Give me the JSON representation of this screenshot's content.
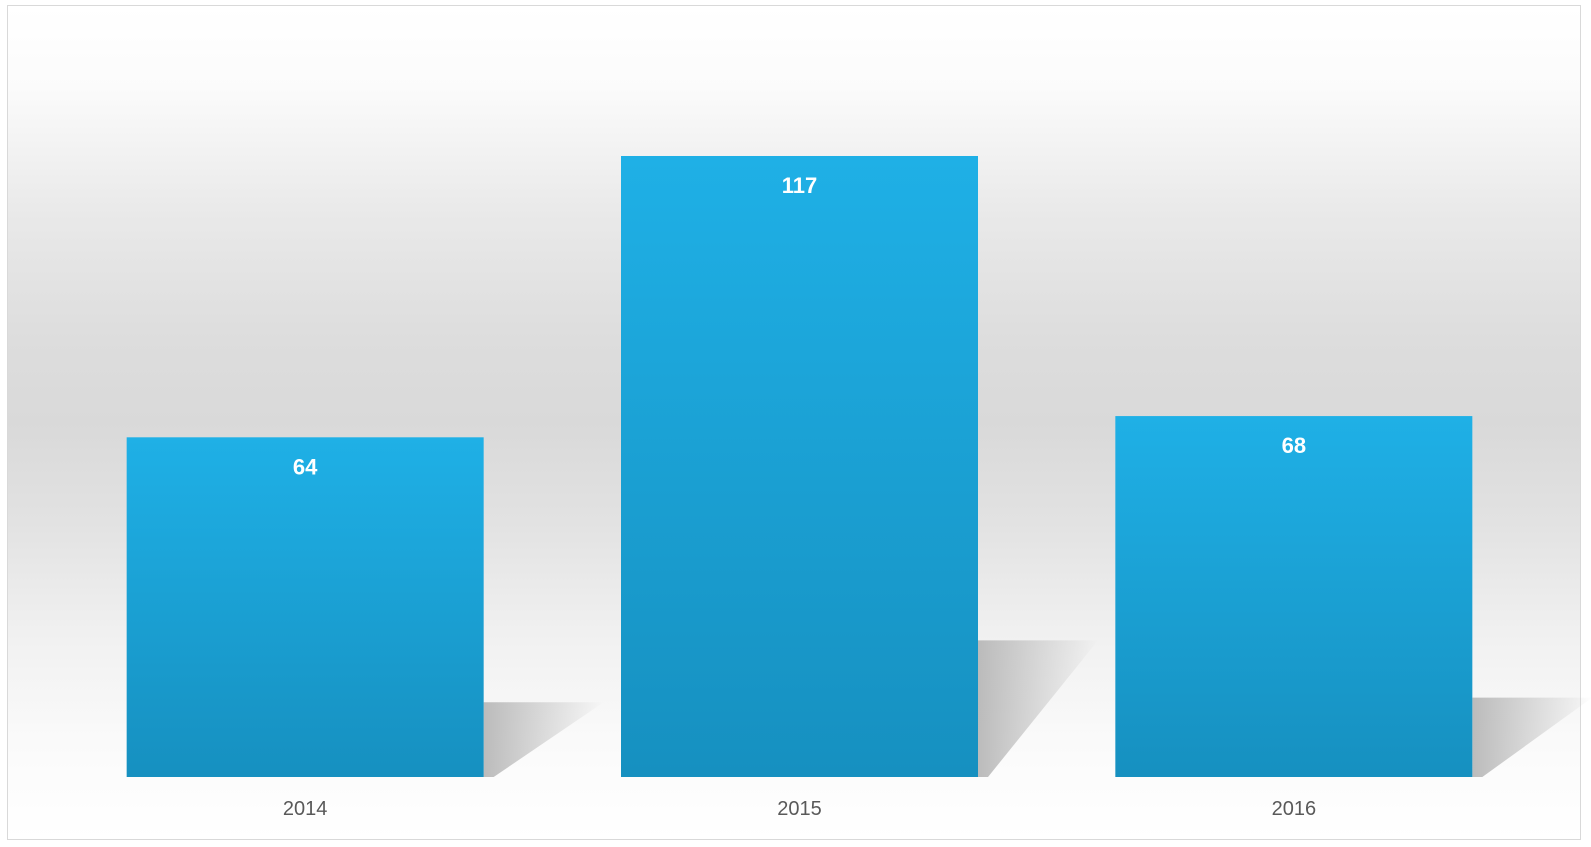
{
  "chart_data": {
    "type": "bar",
    "categories": [
      "2014",
      "2015",
      "2016"
    ],
    "values": [
      64,
      117,
      68
    ],
    "title": "",
    "xlabel": "",
    "ylabel": "",
    "ylim": [
      0,
      117
    ],
    "grid": false,
    "legend": "none",
    "bar_color_top": "#1fb0e6",
    "bar_color_bottom": "#1690c0",
    "shadow_color": "#b8b8b8"
  }
}
